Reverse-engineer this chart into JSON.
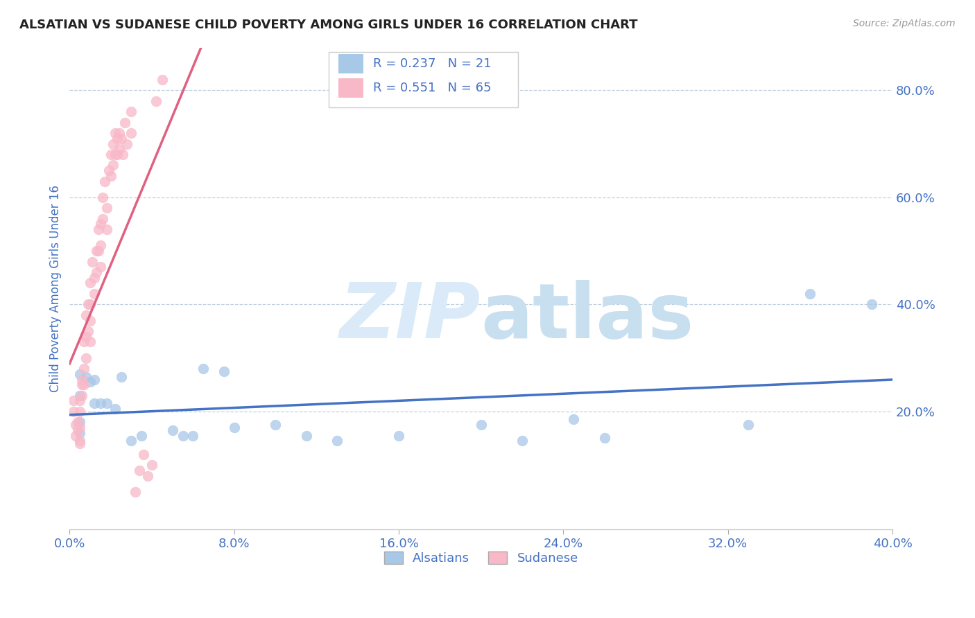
{
  "title": "ALSATIAN VS SUDANESE CHILD POVERTY AMONG GIRLS UNDER 16 CORRELATION CHART",
  "source": "Source: ZipAtlas.com",
  "ylabel": "Child Poverty Among Girls Under 16",
  "xlim": [
    0.0,
    0.4
  ],
  "ylim": [
    -0.02,
    0.88
  ],
  "xticks": [
    0.0,
    0.08,
    0.16,
    0.24,
    0.32,
    0.4
  ],
  "yticks_right": [
    0.2,
    0.4,
    0.6,
    0.8
  ],
  "alsatian_x": [
    0.008,
    0.005,
    0.005,
    0.01,
    0.005,
    0.005,
    0.012,
    0.015,
    0.012,
    0.018,
    0.022,
    0.025,
    0.03,
    0.035,
    0.05,
    0.055,
    0.06,
    0.065,
    0.075,
    0.08,
    0.1,
    0.115,
    0.13,
    0.16,
    0.2,
    0.22,
    0.245,
    0.26,
    0.33,
    0.36,
    0.39
  ],
  "alsatian_y": [
    0.265,
    0.27,
    0.23,
    0.255,
    0.18,
    0.16,
    0.215,
    0.215,
    0.26,
    0.215,
    0.205,
    0.265,
    0.145,
    0.155,
    0.165,
    0.155,
    0.155,
    0.28,
    0.275,
    0.17,
    0.175,
    0.155,
    0.145,
    0.155,
    0.175,
    0.145,
    0.185,
    0.15,
    0.175,
    0.42,
    0.4
  ],
  "sudanese_x": [
    0.002,
    0.002,
    0.003,
    0.003,
    0.004,
    0.004,
    0.005,
    0.005,
    0.005,
    0.005,
    0.005,
    0.006,
    0.006,
    0.006,
    0.007,
    0.007,
    0.007,
    0.008,
    0.008,
    0.008,
    0.009,
    0.009,
    0.01,
    0.01,
    0.01,
    0.01,
    0.011,
    0.012,
    0.012,
    0.013,
    0.013,
    0.014,
    0.014,
    0.015,
    0.015,
    0.015,
    0.016,
    0.016,
    0.017,
    0.018,
    0.018,
    0.019,
    0.02,
    0.02,
    0.021,
    0.021,
    0.022,
    0.022,
    0.023,
    0.023,
    0.024,
    0.024,
    0.025,
    0.026,
    0.027,
    0.028,
    0.03,
    0.03,
    0.032,
    0.034,
    0.036,
    0.038,
    0.04,
    0.042,
    0.045
  ],
  "sudanese_y": [
    0.2,
    0.22,
    0.175,
    0.155,
    0.18,
    0.165,
    0.145,
    0.2,
    0.22,
    0.17,
    0.14,
    0.26,
    0.25,
    0.23,
    0.28,
    0.33,
    0.25,
    0.38,
    0.34,
    0.3,
    0.4,
    0.35,
    0.44,
    0.4,
    0.37,
    0.33,
    0.48,
    0.45,
    0.42,
    0.5,
    0.46,
    0.54,
    0.5,
    0.55,
    0.51,
    0.47,
    0.6,
    0.56,
    0.63,
    0.58,
    0.54,
    0.65,
    0.68,
    0.64,
    0.7,
    0.66,
    0.72,
    0.68,
    0.71,
    0.68,
    0.72,
    0.69,
    0.71,
    0.68,
    0.74,
    0.7,
    0.76,
    0.72,
    0.05,
    0.09,
    0.12,
    0.08,
    0.1,
    0.78,
    0.82
  ],
  "alsatian_color": "#a8c8e8",
  "sudanese_color": "#f8b8c8",
  "alsatian_line_color": "#4472c4",
  "sudanese_line_color": "#e06080",
  "legend_color_text": "#4472c4",
  "watermark_color": "#daeaf8",
  "background_color": "#ffffff",
  "title_color": "#222222",
  "tick_label_color": "#4472c4"
}
